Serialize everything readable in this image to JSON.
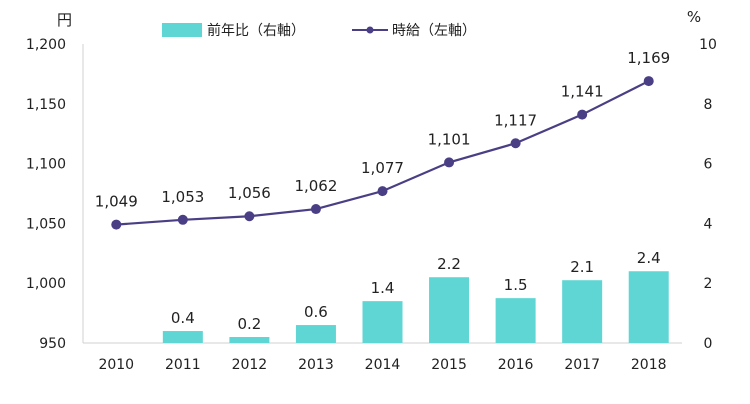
{
  "chart_data": {
    "type": "bar+line",
    "categories": [
      "2010",
      "2011",
      "2012",
      "2013",
      "2014",
      "2015",
      "2016",
      "2017",
      "2018"
    ],
    "left_axis": {
      "unit": "円",
      "ylim": [
        950,
        1200
      ],
      "ticks": [
        950,
        1000,
        1050,
        1100,
        1150,
        1200
      ]
    },
    "right_axis": {
      "unit": "%",
      "ylim": [
        0,
        10
      ],
      "ticks": [
        0,
        2,
        4,
        6,
        8,
        10
      ]
    },
    "series": [
      {
        "name": "前年比（右軸）",
        "type": "bar",
        "axis": "right",
        "color": "#5fd6d4",
        "values": [
          null,
          0.4,
          0.2,
          0.6,
          1.4,
          2.2,
          1.5,
          2.1,
          2.4
        ],
        "labels": [
          "",
          "0.4",
          "0.2",
          "0.6",
          "1.4",
          "2.2",
          "1.5",
          "2.1",
          "2.4"
        ]
      },
      {
        "name": "時給（左軸）",
        "type": "line",
        "axis": "left",
        "color": "#4a3f85",
        "values": [
          1049,
          1053,
          1056,
          1062,
          1077,
          1101,
          1117,
          1141,
          1169
        ],
        "labels": [
          "1,049",
          "1,053",
          "1,056",
          "1,062",
          "1,077",
          "1,101",
          "1,117",
          "1,141",
          "1,169"
        ]
      }
    ],
    "left_tick_labels": [
      "950",
      "1,000",
      "1,050",
      "1,100",
      "1,150",
      "1,200"
    ],
    "right_tick_labels": [
      "0",
      "2",
      "4",
      "6",
      "8",
      "10"
    ],
    "legend_placement": "top",
    "grid": false
  }
}
